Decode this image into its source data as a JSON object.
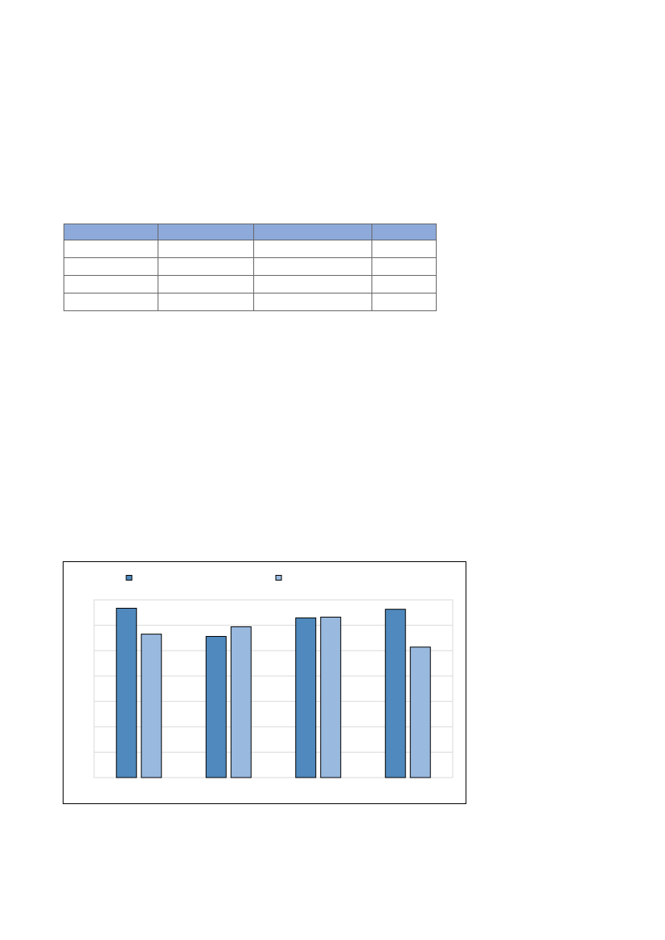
{
  "table": {
    "header_color": "#8eaadb",
    "columns": [
      "",
      "",
      "",
      ""
    ],
    "rows": [
      [
        "",
        "",
        "",
        ""
      ],
      [
        "",
        "",
        "",
        ""
      ],
      [
        "",
        "",
        "",
        ""
      ],
      [
        "",
        "",
        "",
        ""
      ]
    ]
  },
  "chart_data": {
    "type": "bar",
    "title": "",
    "xlabel": "",
    "ylabel": "",
    "categories": [
      "",
      "",
      "",
      ""
    ],
    "ylim": [
      0,
      7
    ],
    "grid": true,
    "legend": "top",
    "series": [
      {
        "color": "#4f89bd",
        "values": [
          6.67,
          5.56,
          6.29,
          6.63
        ]
      },
      {
        "color": "#99b9df",
        "values": [
          5.65,
          5.94,
          6.32,
          5.14
        ]
      }
    ]
  }
}
